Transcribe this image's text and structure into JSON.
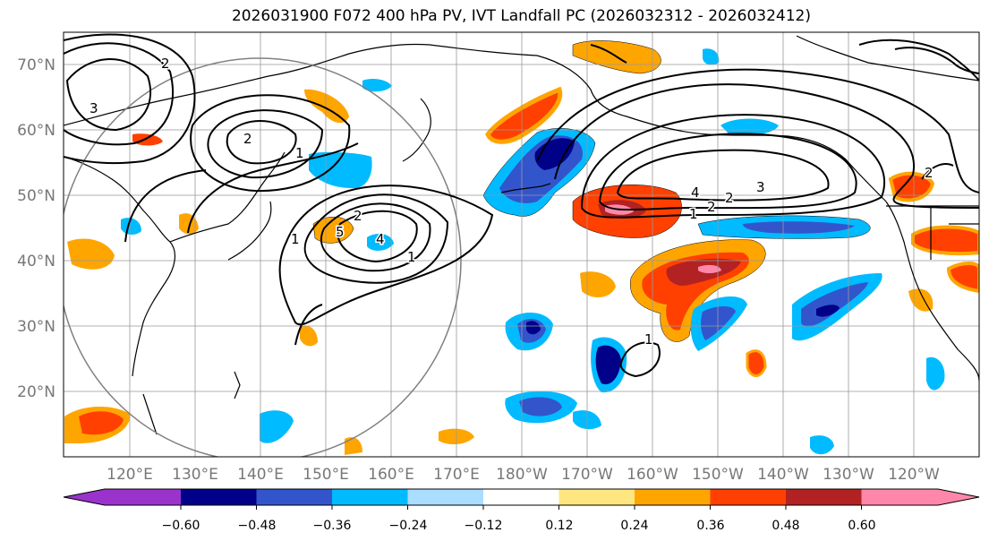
{
  "title": "2026031900 F072 400 hPa PV, IVT Landfall PC (2026032312 - 2026032412)",
  "lat_labels": [
    "70°N",
    "60°N",
    "50°N",
    "40°N",
    "30°N",
    "20°N"
  ],
  "lon_labels": [
    "120°E",
    "130°E",
    "140°E",
    "150°E",
    "160°E",
    "170°E",
    "180°W",
    "170°W",
    "160°W",
    "150°W",
    "140°W",
    "130°W",
    "120°W"
  ],
  "colorbar": {
    "colors": [
      "#9933cc",
      "#000088",
      "#3355cc",
      "#00bbff",
      "#aaddff",
      "#ffffff",
      "#ffe680",
      "#ffa500",
      "#ff4000",
      "#b22222",
      "#ff88aa"
    ],
    "tick_labels": [
      "−0.60",
      "−0.48",
      "−0.36",
      "−0.24",
      "−0.12",
      "0.12",
      "0.24",
      "0.36",
      "0.48",
      "0.60"
    ]
  },
  "contour_labels": [
    "3",
    "2",
    "1",
    "2",
    "5",
    "4",
    "1",
    "1",
    "4",
    "2",
    "3",
    "1",
    "2",
    "2",
    "1",
    "2"
  ],
  "colors": {
    "land_outline": "#000000",
    "grid": "#999999",
    "label_gray": "#777777"
  }
}
